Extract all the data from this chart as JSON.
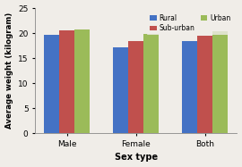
{
  "categories": [
    "Male",
    "Female",
    "Both"
  ],
  "series": {
    "Rural": [
      19.7,
      17.1,
      18.5
    ],
    "Sub-urban": [
      20.6,
      18.4,
      19.5
    ],
    "Urban": [
      20.8,
      19.8,
      20.4
    ]
  },
  "colors": {
    "Rural": "#4472C4",
    "Sub-urban": "#C0504D",
    "Urban": "#9BBB59"
  },
  "xlabel": "Sex type",
  "ylabel": "Average weight (kilogram)",
  "ylim": [
    0,
    25
  ],
  "yticks": [
    0,
    5,
    10,
    15,
    20,
    25
  ],
  "legend_order": [
    "Rural",
    "Sub-urban",
    "Urban"
  ],
  "bar_width": 0.22,
  "background_color": "#f0ede8",
  "title": ""
}
